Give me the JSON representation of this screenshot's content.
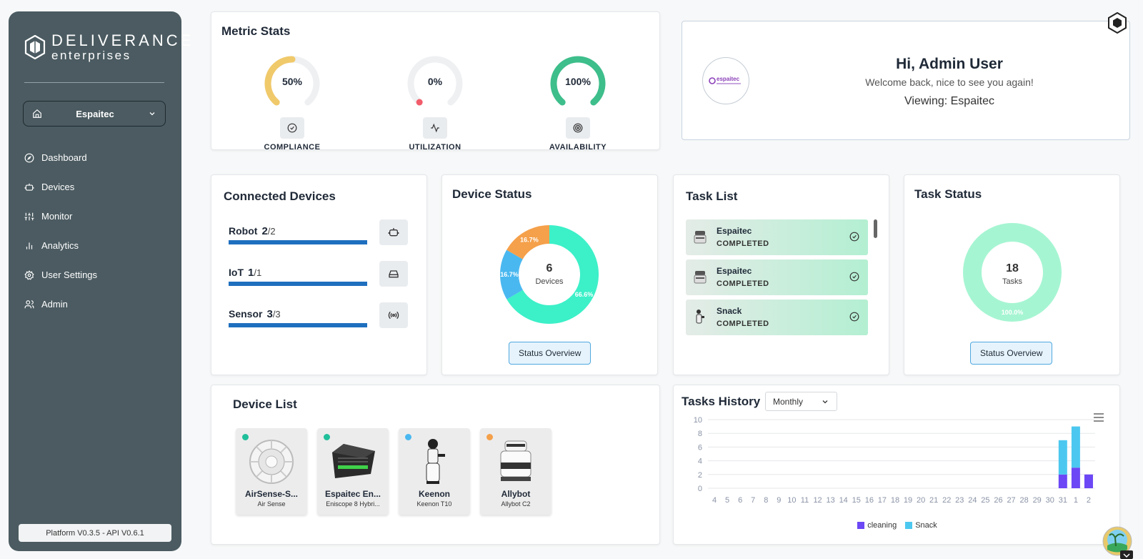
{
  "sidebar": {
    "brand_line1": "DELIVERANCE",
    "brand_line2": "enterprises",
    "workspace": "Espaitec",
    "nav": [
      {
        "label": "Dashboard",
        "icon": "compass-icon"
      },
      {
        "label": "Devices",
        "icon": "robot-icon"
      },
      {
        "label": "Monitor",
        "icon": "sliders-icon"
      },
      {
        "label": "Analytics",
        "icon": "bar-chart-icon"
      },
      {
        "label": "User Settings",
        "icon": "gear-icon"
      },
      {
        "label": "Admin",
        "icon": "users-icon"
      }
    ],
    "version": "Platform V0.3.5 - API V0.6.1"
  },
  "metric_stats": {
    "title": "Metric Stats",
    "gauges": [
      {
        "label": "COMPLIANCE",
        "value": "50%",
        "fraction": 0.5,
        "color": "#f0c96a",
        "icon": "check-circle-icon"
      },
      {
        "label": "UTILIZATION",
        "value": "0%",
        "fraction": 0.0,
        "color": "#f25c6a",
        "icon": "activity-icon"
      },
      {
        "label": "AVAILABILITY",
        "value": "100%",
        "fraction": 1.0,
        "color": "#3dbe8b",
        "icon": "target-icon"
      }
    ]
  },
  "welcome": {
    "greeting": "Hi, Admin User",
    "subtitle": "Welcome back, nice to see you again!",
    "viewing": "Viewing: Espaitec",
    "avatar_text": "espaitec"
  },
  "connected_devices": {
    "title": "Connected Devices",
    "rows": [
      {
        "name": "Robot",
        "count": "2",
        "total": "/2",
        "icon": "robot-icon"
      },
      {
        "name": "IoT",
        "count": "1",
        "total": "/1",
        "icon": "router-icon"
      },
      {
        "name": "Sensor",
        "count": "3",
        "total": "/3",
        "icon": "broadcast-icon"
      }
    ]
  },
  "device_status": {
    "title": "Device Status",
    "center_value": "6",
    "center_label": "Devices",
    "button": "Status Overview",
    "slices": [
      {
        "label": "66.6%",
        "value": 66.6,
        "color": "#3cf0c8"
      },
      {
        "label": "16.7%",
        "value": 16.7,
        "color": "#4ab8f0"
      },
      {
        "label": "16.7%",
        "value": 16.7,
        "color": "#f5a04a"
      }
    ]
  },
  "task_list": {
    "title": "Task List",
    "items": [
      {
        "name": "Espaitec",
        "status": "COMPLETED"
      },
      {
        "name": "Espaitec",
        "status": "COMPLETED"
      },
      {
        "name": "Snack",
        "status": "COMPLETED"
      }
    ]
  },
  "task_status": {
    "title": "Task Status",
    "center_value": "18",
    "center_label": "Tasks",
    "slice_label": "100.0%",
    "color": "#a6f5d2",
    "button": "Status Overview"
  },
  "device_list": {
    "title": "Device List",
    "devices": [
      {
        "name": "AirSense-S...",
        "model": "Air Sense",
        "status_color": "#1fbf9a"
      },
      {
        "name": "Espaitec En...",
        "model": "Eniscope 8 Hybri...",
        "status_color": "#1fbf9a"
      },
      {
        "name": "Keenon",
        "model": "Keenon T10",
        "status_color": "#4ab8f0"
      },
      {
        "name": "Allybot",
        "model": "Allybot C2",
        "status_color": "#f5a04a"
      }
    ]
  },
  "tasks_history": {
    "title": "Tasks History",
    "period": "Monthly",
    "menu_icon": "hamburger-icon"
  },
  "chart_data": {
    "type": "bar",
    "stacked": true,
    "categories": [
      "4",
      "5",
      "6",
      "7",
      "8",
      "9",
      "10",
      "11",
      "12",
      "13",
      "14",
      "15",
      "16",
      "17",
      "18",
      "19",
      "20",
      "21",
      "22",
      "23",
      "24",
      "25",
      "26",
      "27",
      "28",
      "29",
      "30",
      "31",
      "1",
      "2"
    ],
    "series": [
      {
        "name": "cleaning",
        "color": "#6c47f5",
        "values": [
          0,
          0,
          0,
          0,
          0,
          0,
          0,
          0,
          0,
          0,
          0,
          0,
          0,
          0,
          0,
          0,
          0,
          0,
          0,
          0,
          0,
          0,
          0,
          0,
          0,
          0,
          0,
          2,
          3,
          2
        ]
      },
      {
        "name": "Snack",
        "color": "#4cc8f0",
        "values": [
          0,
          0,
          0,
          0,
          0,
          0,
          0,
          0,
          0,
          0,
          0,
          0,
          0,
          0,
          0,
          0,
          0,
          0,
          0,
          0,
          0,
          0,
          0,
          0,
          0,
          0,
          0,
          5,
          6,
          0
        ]
      }
    ],
    "yticks": [
      "0",
      "2",
      "4",
      "6",
      "8",
      "10"
    ],
    "ylim": [
      0,
      10
    ],
    "grid": true,
    "legend": "bottom-center"
  }
}
